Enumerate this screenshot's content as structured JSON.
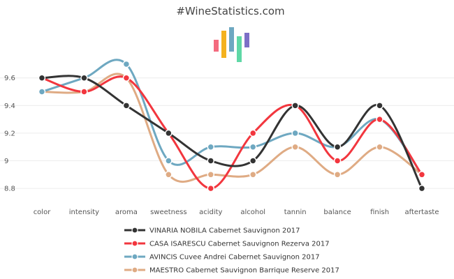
{
  "chart_data": {
    "type": "line",
    "title": "#WineStatistics.com",
    "xlabel": "",
    "ylabel": "",
    "categories": [
      "color",
      "intensity",
      "aroma",
      "sweetness",
      "acidity",
      "alcohol",
      "tannin",
      "balance",
      "finish",
      "aftertaste"
    ],
    "y_ticks": [
      "8.8",
      "9",
      "9.2",
      "9.4",
      "9.6"
    ],
    "ylim": [
      8.75,
      9.73
    ],
    "series": [
      {
        "name": "VINARIA NOBILA Cabernet Sauvignon 2017",
        "color": "#333333",
        "values": [
          9.6,
          9.6,
          9.4,
          9.2,
          9.0,
          9.0,
          9.4,
          9.1,
          9.4,
          8.8
        ]
      },
      {
        "name": "CASA ISARESCU Cabernet Sauvignon Rezerva 2017",
        "color": "#f2363e",
        "values": [
          9.6,
          9.5,
          9.6,
          9.2,
          8.8,
          9.2,
          9.4,
          9.0,
          9.3,
          8.9
        ]
      },
      {
        "name": "AVINCIS Cuvee Andrei Cabernet Sauvignon 2017",
        "color": "#6ea8c1",
        "values": [
          9.5,
          9.6,
          9.7,
          9.0,
          9.1,
          9.1,
          9.2,
          9.1,
          9.3,
          8.9
        ]
      },
      {
        "name": "MAESTRO Cabernet Sauvignon Barrique Reserve 2017",
        "color": "#dfab84",
        "values": [
          9.5,
          9.5,
          9.6,
          8.9,
          8.9,
          8.9,
          9.1,
          8.9,
          9.1,
          8.9
        ]
      }
    ]
  },
  "logo_colors": [
    "#f46b7f",
    "#f4b21f",
    "#6ea8c1",
    "#5fd8a6",
    "#7c6fc7"
  ]
}
